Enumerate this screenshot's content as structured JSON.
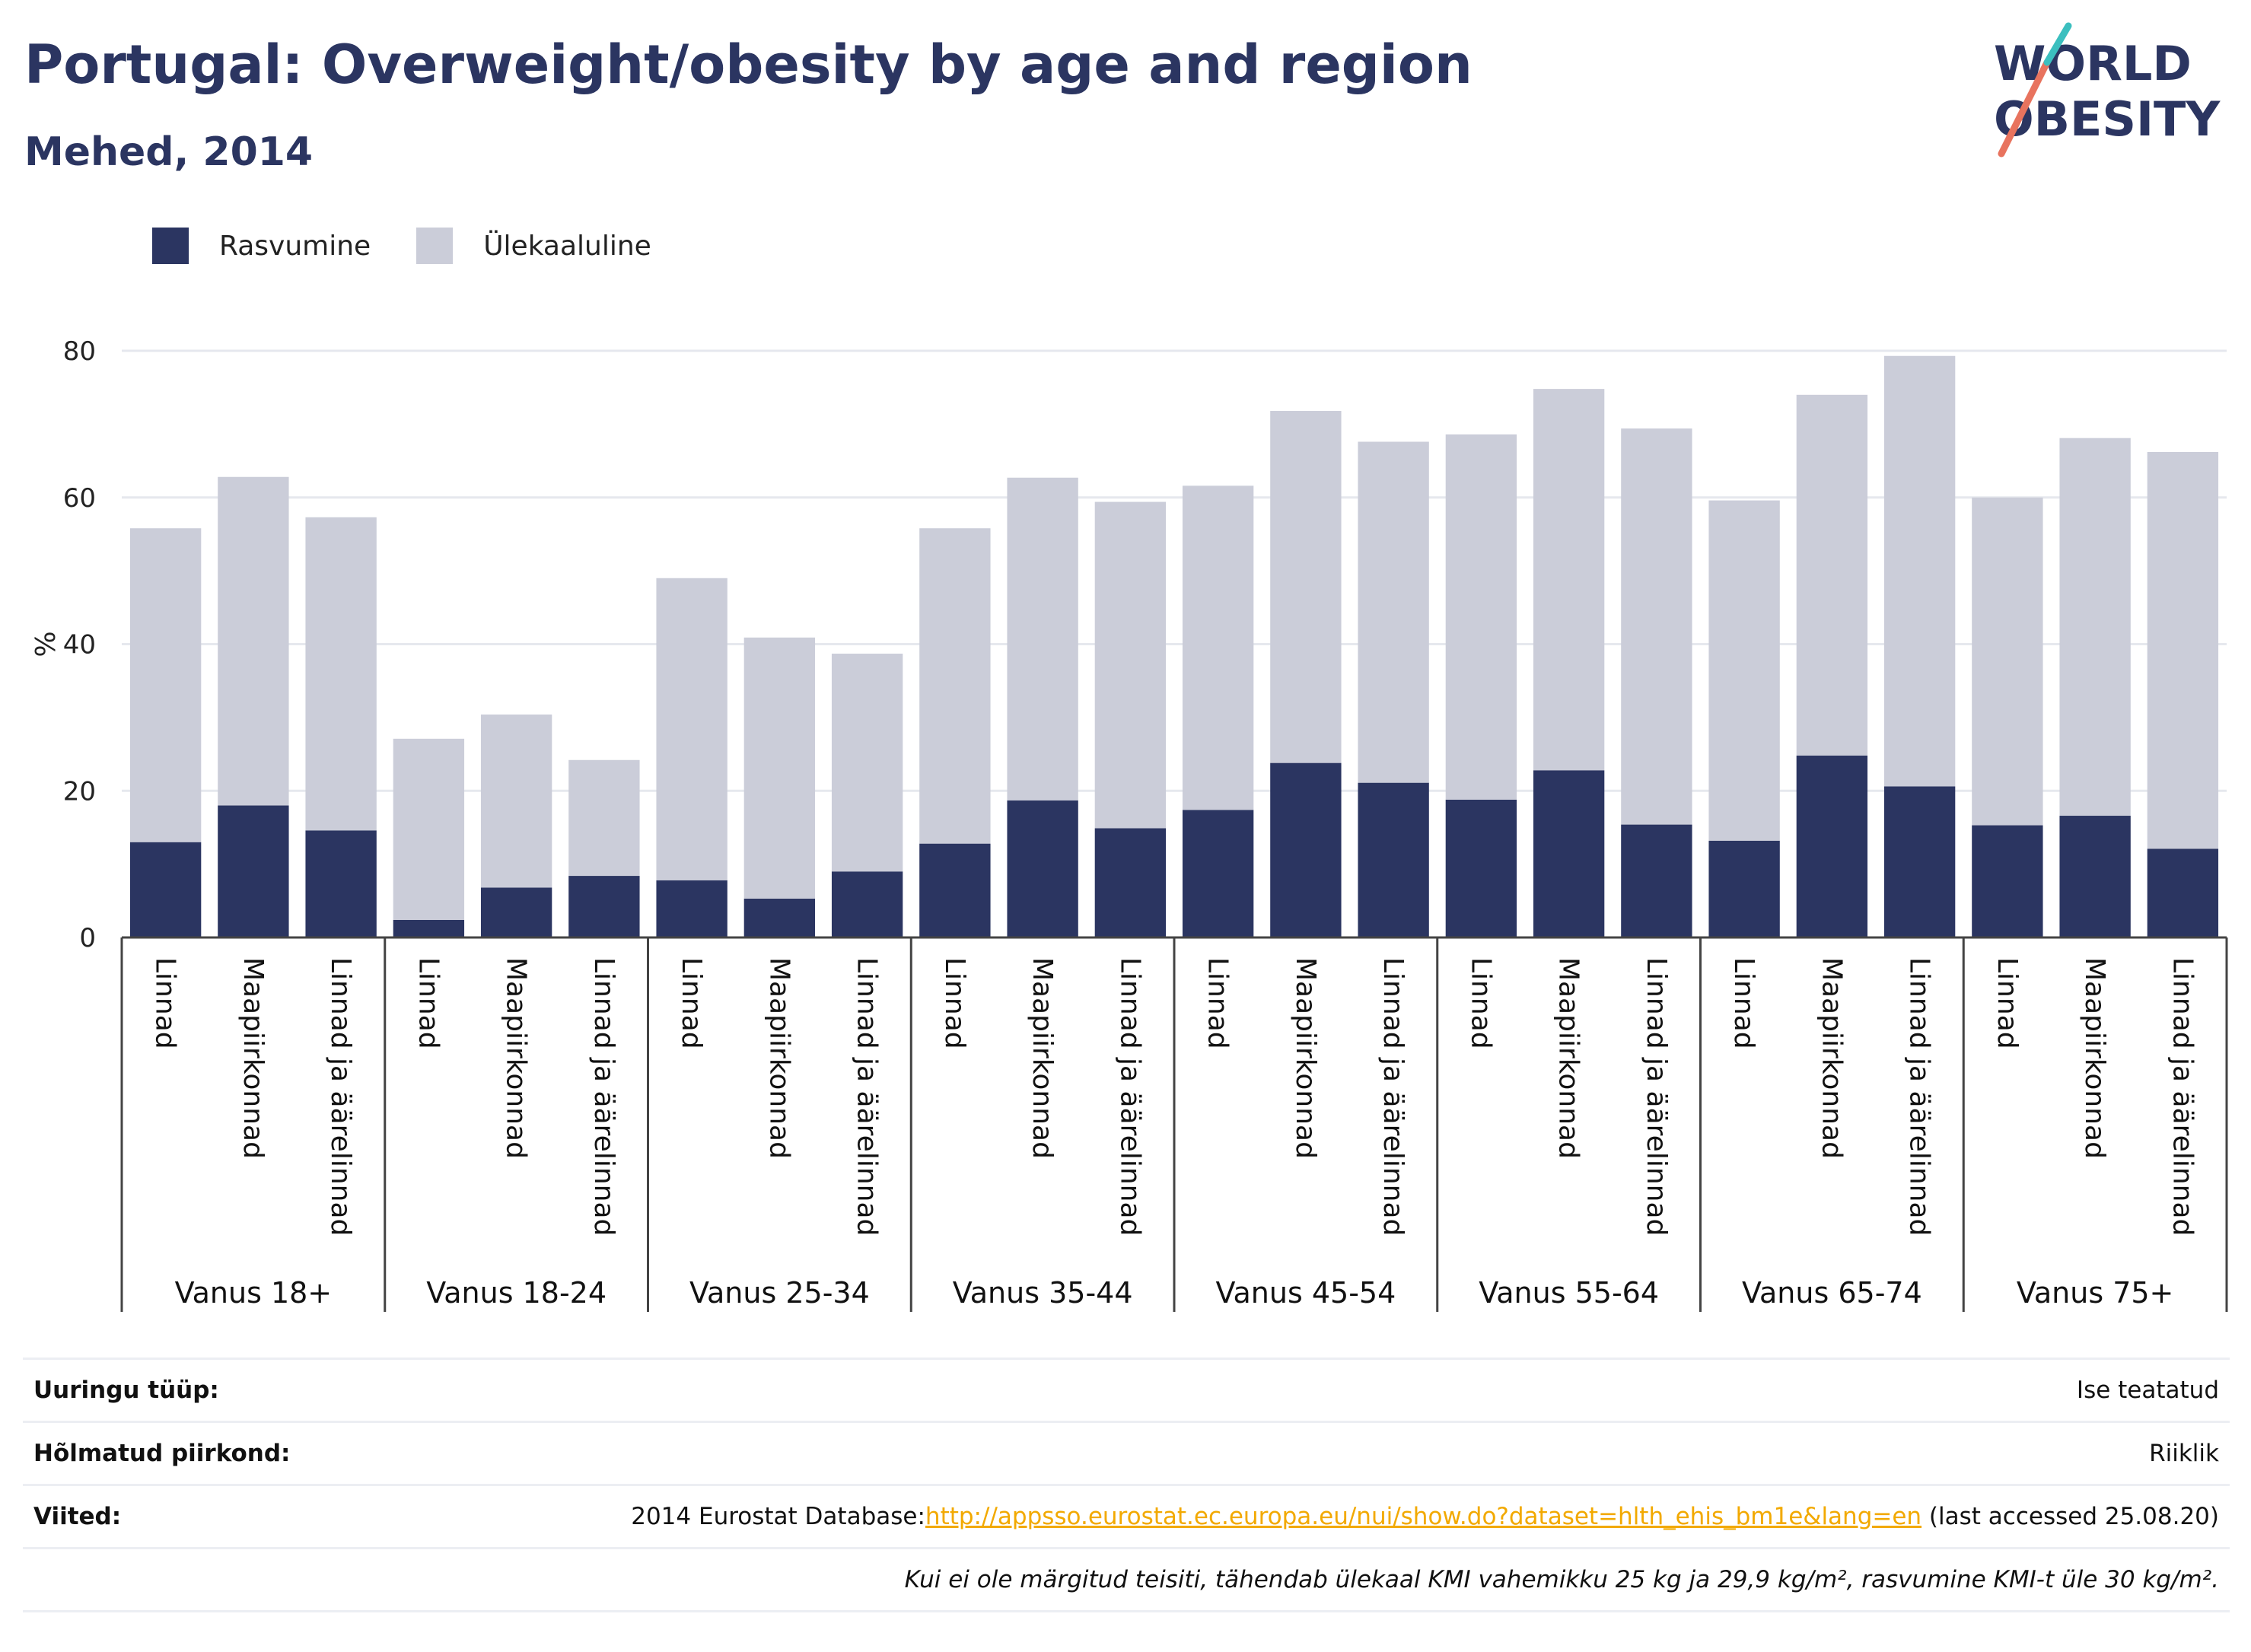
{
  "header": {
    "title": "Portugal: Overweight/obesity by age and region",
    "subtitle": "Mehed, 2014"
  },
  "logo": {
    "line1": "WORLD",
    "line2": "OBESITY"
  },
  "colors": {
    "obese": "#2b3561",
    "overweight": "#cbcdd9",
    "title": "#2b3561",
    "link": "#f2a900"
  },
  "chart_data": {
    "type": "bar",
    "stacked": true,
    "ylabel": "%",
    "ylim": [
      0,
      80
    ],
    "yticks": [
      0,
      20,
      40,
      60,
      80
    ],
    "grid": true,
    "legend_position": "top-left",
    "groups": [
      "Vanus 18+",
      "Vanus 18-24",
      "Vanus 25-34",
      "Vanus 35-44",
      "Vanus 45-54",
      "Vanus 55-64",
      "Vanus 65-74",
      "Vanus 75+"
    ],
    "subcategories": [
      "Linnad",
      "Maapiirkonnad",
      "Linnad ja äärelinnad"
    ],
    "series": [
      {
        "name": "Rasvumine",
        "values": [
          13.0,
          18.0,
          14.6,
          2.4,
          6.8,
          8.4,
          7.8,
          5.3,
          9.0,
          12.8,
          18.7,
          14.9,
          17.4,
          23.8,
          21.1,
          18.8,
          22.8,
          15.4,
          13.2,
          24.8,
          20.6,
          15.3,
          16.6,
          12.1
        ]
      },
      {
        "name": "Ülekaaluline",
        "values": [
          42.8,
          44.8,
          42.7,
          24.7,
          23.6,
          15.8,
          41.2,
          35.6,
          29.7,
          43.0,
          44.0,
          44.5,
          44.2,
          48.0,
          46.5,
          49.8,
          52.0,
          54.0,
          46.4,
          49.2,
          58.7,
          44.7,
          51.5,
          54.1
        ]
      }
    ]
  },
  "info": {
    "rows": [
      {
        "key": "Uuringu tüüp:",
        "value": "Ise teatatud"
      },
      {
        "key": "Hõlmatud piirkond:",
        "value": "Riiklik"
      },
      {
        "key": "Viited:",
        "value_prefix": "2014 Eurostat Database:",
        "link": "http://appsso.eurostat.ec.europa.eu/nui/show.do?dataset=hlth_ehis_bm1e&lang=en",
        "value_suffix": " (last accessed 25.08.20)"
      }
    ],
    "footnote": "Kui ei ole märgitud teisiti, tähendab ülekaal KMI vahemikku 25 kg ja 29,9 kg/m², rasvumine KMI-t üle 30 kg/m²."
  }
}
